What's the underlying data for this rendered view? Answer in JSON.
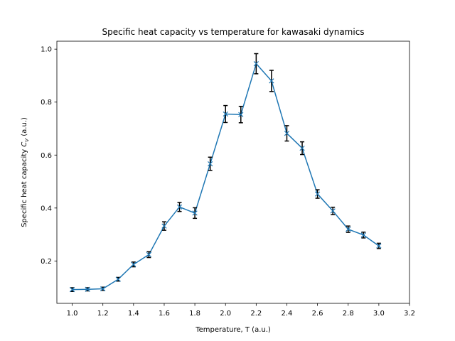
{
  "chart_data": {
    "type": "line",
    "title": "Specific heat capacity vs temperature for kawasaki dynamics",
    "xlabel": "Temperature, T (a.u.)",
    "ylabel": "Specific heat capacity C_V (a.u.)",
    "ylabel_main": "Specific heat capacity ",
    "ylabel_sym": "C",
    "ylabel_sub": "V",
    "ylabel_unit": " (a.u.)",
    "xlim": [
      0.9,
      3.2
    ],
    "ylim": [
      0.04,
      1.03
    ],
    "xticks": [
      1.0,
      1.2,
      1.4,
      1.6,
      1.8,
      2.0,
      2.2,
      2.4,
      2.6,
      2.8,
      3.0,
      3.2
    ],
    "xtick_labels": [
      "1.0",
      "1.2",
      "1.4",
      "1.6",
      "1.8",
      "2.0",
      "2.2",
      "2.4",
      "2.6",
      "2.8",
      "3.0",
      "3.2"
    ],
    "yticks": [
      0.2,
      0.4,
      0.6,
      0.8,
      1.0
    ],
    "ytick_labels": [
      "0.2",
      "0.4",
      "0.6",
      "0.8",
      "1.0"
    ],
    "grid": false,
    "colors": {
      "line": "#1f77b4",
      "errorbar": "#000000"
    },
    "series": [
      {
        "marker": "x",
        "x": [
          1.0,
          1.1,
          1.2,
          1.3,
          1.4,
          1.5,
          1.6,
          1.7,
          1.8,
          1.9,
          2.0,
          2.1,
          2.2,
          2.3,
          2.4,
          2.5,
          2.6,
          2.7,
          2.8,
          2.9,
          3.0
        ],
        "y": [
          0.092,
          0.093,
          0.095,
          0.131,
          0.187,
          0.224,
          0.332,
          0.404,
          0.381,
          0.567,
          0.755,
          0.753,
          0.945,
          0.88,
          0.682,
          0.626,
          0.453,
          0.389,
          0.32,
          0.298,
          0.257
        ],
        "yerr": [
          0.007,
          0.006,
          0.006,
          0.007,
          0.009,
          0.011,
          0.016,
          0.017,
          0.02,
          0.025,
          0.032,
          0.031,
          0.038,
          0.04,
          0.029,
          0.024,
          0.016,
          0.014,
          0.012,
          0.011,
          0.01
        ]
      }
    ]
  }
}
